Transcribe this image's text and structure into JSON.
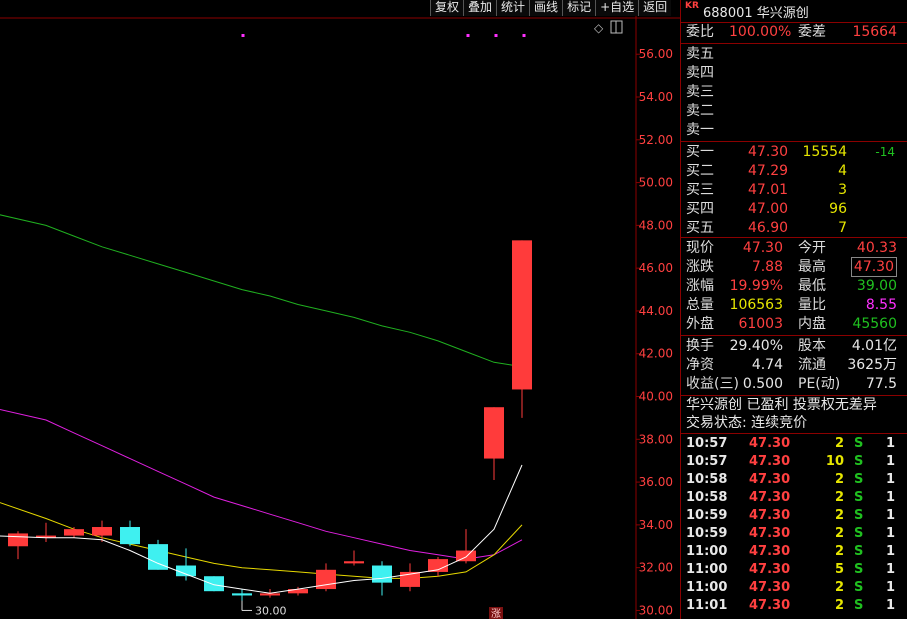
{
  "toolbar": [
    "复权",
    "叠加",
    "统计",
    "画线",
    "标记",
    "+自选",
    "返回"
  ],
  "chart_icons": {
    "diamond": "◇",
    "split": "▯"
  },
  "stock": {
    "tag": "KR",
    "code": "688001",
    "name": "华兴源创"
  },
  "weibi": {
    "label": "委比",
    "value": "100.00%",
    "diff_label": "委差",
    "diff_value": "15664"
  },
  "sell": [
    {
      "label": "卖五"
    },
    {
      "label": "卖四"
    },
    {
      "label": "卖三"
    },
    {
      "label": "卖二"
    },
    {
      "label": "卖一"
    }
  ],
  "buy": [
    {
      "label": "买一",
      "price": "47.30",
      "vol": "15554",
      "chg": "-14"
    },
    {
      "label": "买二",
      "price": "47.29",
      "vol": "4",
      "chg": ""
    },
    {
      "label": "买三",
      "price": "47.01",
      "vol": "3",
      "chg": ""
    },
    {
      "label": "买四",
      "price": "47.00",
      "vol": "96",
      "chg": ""
    },
    {
      "label": "买五",
      "price": "46.90",
      "vol": "7",
      "chg": ""
    }
  ],
  "quote": [
    {
      "l1": "现价",
      "v1": "47.30",
      "c1": "red",
      "l2": "今开",
      "v2": "40.33",
      "c2": "red"
    },
    {
      "l1": "涨跌",
      "v1": "7.88",
      "c1": "red",
      "l2": "最高",
      "v2": "47.30",
      "c2": "red",
      "box": true
    },
    {
      "l1": "涨幅",
      "v1": "19.99%",
      "c1": "red",
      "l2": "最低",
      "v2": "39.00",
      "c2": "grn"
    },
    {
      "l1": "总量",
      "v1": "106563",
      "c1": "yel",
      "l2": "量比",
      "v2": "8.55",
      "c2": "mag"
    },
    {
      "l1": "外盘",
      "v1": "61003",
      "c1": "red",
      "l2": "内盘",
      "v2": "45560",
      "c2": "grn"
    }
  ],
  "fund": [
    {
      "l1": "换手",
      "v1": "29.40%",
      "l2": "股本",
      "v2": "4.01亿"
    },
    {
      "l1": "净资",
      "v1": "4.74",
      "l2": "流通",
      "v2": "3625万"
    },
    {
      "l1": "收益(三)",
      "v1": "0.500",
      "l2": "PE(动)",
      "v2": "77.5"
    }
  ],
  "notes": [
    "华兴源创 已盈利 投票权无差异",
    "交易状态: 连续竞价"
  ],
  "ticks": [
    {
      "t": "10:57",
      "p": "47.30",
      "v": "2",
      "s": "S",
      "n": "1"
    },
    {
      "t": "10:57",
      "p": "47.30",
      "v": "10",
      "s": "S",
      "n": "1"
    },
    {
      "t": "10:58",
      "p": "47.30",
      "v": "2",
      "s": "S",
      "n": "1"
    },
    {
      "t": "10:58",
      "p": "47.30",
      "v": "2",
      "s": "S",
      "n": "1"
    },
    {
      "t": "10:59",
      "p": "47.30",
      "v": "2",
      "s": "S",
      "n": "1"
    },
    {
      "t": "10:59",
      "p": "47.30",
      "v": "2",
      "s": "S",
      "n": "1"
    },
    {
      "t": "11:00",
      "p": "47.30",
      "v": "2",
      "s": "S",
      "n": "1"
    },
    {
      "t": "11:00",
      "p": "47.30",
      "v": "5",
      "s": "S",
      "n": "1"
    },
    {
      "t": "11:00",
      "p": "47.30",
      "v": "2",
      "s": "S",
      "n": "1"
    },
    {
      "t": "11:01",
      "p": "47.30",
      "v": "2",
      "s": "S",
      "n": "1"
    }
  ],
  "chart_data": {
    "type": "candlestick",
    "y_ticks": [
      "56.00",
      "54.00",
      "52.00",
      "50.00",
      "48.00",
      "46.00",
      "44.00",
      "42.00",
      "40.00",
      "38.00",
      "36.00",
      "34.00",
      "32.00",
      "30.00"
    ],
    "ylim": [
      29.6,
      57.6
    ],
    "low_marker": "30.00",
    "bottom_tag": "涨",
    "colors": {
      "up": "#ff3b3b",
      "down": "#3ff0f0",
      "ma_white": "#ffffff",
      "ma_yellow": "#e6d800",
      "ma_magenta": "#e020e0",
      "ma_green": "#20b020"
    },
    "candles": [
      {
        "o": 33.0,
        "h": 33.7,
        "l": 32.4,
        "c": 33.6
      },
      {
        "o": 33.4,
        "h": 34.1,
        "l": 33.2,
        "c": 33.5
      },
      {
        "o": 33.5,
        "h": 33.9,
        "l": 33.4,
        "c": 33.8
      },
      {
        "o": 33.5,
        "h": 34.2,
        "l": 33.2,
        "c": 33.9
      },
      {
        "o": 33.9,
        "h": 34.2,
        "l": 33.0,
        "c": 33.1
      },
      {
        "o": 33.1,
        "h": 33.3,
        "l": 31.9,
        "c": 31.9
      },
      {
        "o": 32.1,
        "h": 32.9,
        "l": 31.4,
        "c": 31.6
      },
      {
        "o": 31.6,
        "h": 31.6,
        "l": 30.9,
        "c": 30.9
      },
      {
        "o": 30.8,
        "h": 31.0,
        "l": 30.0,
        "c": 30.7
      },
      {
        "o": 30.7,
        "h": 31.0,
        "l": 30.6,
        "c": 30.8
      },
      {
        "o": 30.8,
        "h": 31.1,
        "l": 30.7,
        "c": 31.0
      },
      {
        "o": 31.0,
        "h": 32.2,
        "l": 30.9,
        "c": 31.9
      },
      {
        "o": 32.2,
        "h": 32.8,
        "l": 32.1,
        "c": 32.3
      },
      {
        "o": 32.1,
        "h": 32.3,
        "l": 30.7,
        "c": 31.3
      },
      {
        "o": 31.1,
        "h": 32.2,
        "l": 30.9,
        "c": 31.8
      },
      {
        "o": 31.8,
        "h": 32.5,
        "l": 31.6,
        "c": 32.4
      },
      {
        "o": 32.3,
        "h": 33.8,
        "l": 32.2,
        "c": 32.8
      },
      {
        "o": 37.1,
        "h": 39.5,
        "l": 36.1,
        "c": 39.5
      },
      {
        "o": 40.33,
        "h": 47.3,
        "l": 39.0,
        "c": 47.3
      }
    ],
    "ma_white": [
      33.5,
      33.4,
      33.4,
      33.3,
      32.8,
      32.2,
      31.7,
      31.2,
      31.0,
      30.8,
      31.0,
      31.2,
      31.4,
      31.5,
      31.7,
      31.9,
      32.5,
      33.8,
      36.8
    ],
    "ma_yellow": [
      35.2,
      34.3,
      33.8,
      33.4,
      33.1,
      32.8,
      32.5,
      32.2,
      32.0,
      31.9,
      31.8,
      31.7,
      31.6,
      31.5,
      31.5,
      31.6,
      31.8,
      32.6,
      34.0
    ],
    "ma_magenta": [
      39.5,
      38.9,
      38.3,
      37.7,
      37.1,
      36.5,
      35.9,
      35.3,
      34.9,
      34.5,
      34.1,
      33.7,
      33.4,
      33.1,
      32.8,
      32.6,
      32.4,
      32.6,
      33.3
    ],
    "ma_green": [
      48.6,
      48.0,
      47.5,
      47.0,
      46.6,
      46.2,
      45.8,
      45.4,
      45.0,
      44.7,
      44.3,
      44.0,
      43.7,
      43.3,
      43.0,
      42.6,
      42.1,
      41.6,
      41.4
    ]
  }
}
